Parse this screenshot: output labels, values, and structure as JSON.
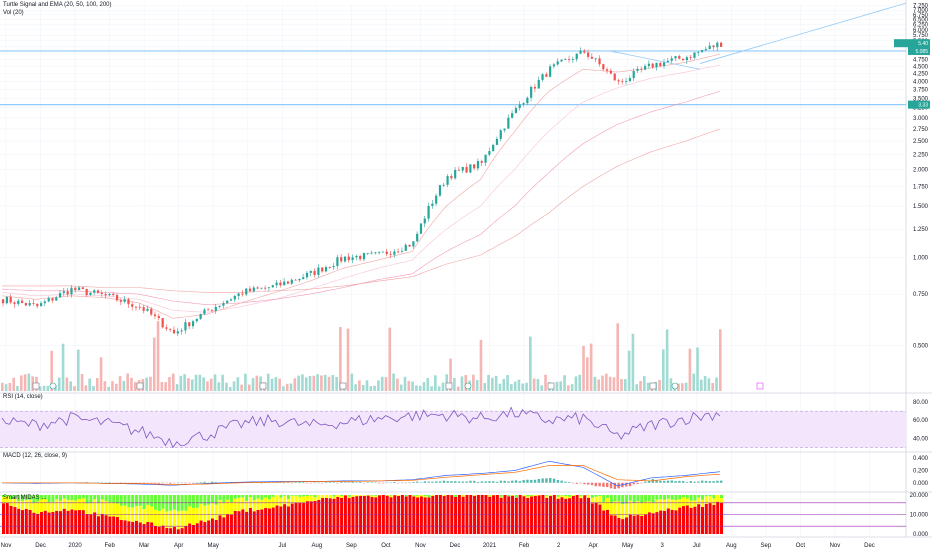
{
  "legends": {
    "main_title": "Turtle Signal and EMA (20, 50, 100, 200)",
    "vol": "Vol (20)",
    "rsi": "RSI (14, close)",
    "macd": "MACD (12, 26, close, 9)",
    "smart": "Smart MIDAS ..."
  },
  "colors": {
    "up": "#26a69a",
    "down": "#ef5350",
    "vol_up": "#8fd3ca",
    "vol_down": "#f2a8a6",
    "hline": "#90caf9",
    "rsi_line": "#7e57c2",
    "rsi_band": "#f3e5fb",
    "macd_line": "#2962ff",
    "signal_line": "#ff6d00",
    "smart_red": "#ff0000",
    "smart_yellow": "#ffff00",
    "smart_green": "#66ff33",
    "price_label": "#26a69a"
  },
  "chart_data": [
    {
      "type": "line",
      "title": "Turtle Signal and EMA (20, 50, 100, 200)",
      "x_axis": {
        "labels": [
          "Nov",
          "Dec",
          "2020",
          "Feb",
          "Mar",
          "Apr",
          "May",
          "Jun",
          "Jul",
          "Aug",
          "Sep",
          "Oct",
          "Nov",
          "Dec",
          "2021",
          "Feb",
          "Mar",
          "Apr",
          "May",
          "Jun",
          "Jul",
          "Aug",
          "Sep",
          "Oct",
          "Nov",
          "Dec"
        ],
        "display_labels": [
          "Nov",
          "Dec",
          "2020",
          "Feb",
          "Mar",
          "Apr",
          "May",
          "",
          "Jul",
          "Aug",
          "Sep",
          "Oct",
          "Nov",
          "Dec",
          "2021",
          "Feb",
          "2",
          "Apr",
          "May",
          "3",
          "Jul",
          "Aug",
          "Sep",
          "Oct",
          "Nov",
          "Dec"
        ]
      },
      "y_axis": {
        "ticks": [
          "7.250",
          "7.000",
          "6.750",
          "6.500",
          "6.250",
          "6.000",
          "5.750",
          "5.500",
          "5.250",
          "5.000",
          "4.750",
          "4.500",
          "4.250",
          "4.000",
          "3.750",
          "3.500",
          "3.250",
          "3.000",
          "2.750",
          "2.500",
          "2.250",
          "2.000",
          "1.750",
          "1.500",
          "1.250",
          "1.000",
          "0.750",
          "0.500"
        ],
        "range": [
          0.35,
          7.35
        ]
      },
      "price_series": {
        "name": "",
        "dates": [
          "Nov",
          "Dec",
          "2020",
          "Feb",
          "Mar",
          "Apr",
          "May",
          "Jun",
          "Jul",
          "Aug",
          "Sep",
          "Oct",
          "Nov",
          "Dec",
          "2021",
          "Feb",
          "Mar",
          "Apr",
          "May",
          "Jun",
          "Jul",
          "Jul-end"
        ],
        "values": [
          0.72,
          0.68,
          0.78,
          0.74,
          0.68,
          0.55,
          0.66,
          0.76,
          0.8,
          0.88,
          1.0,
          1.02,
          1.12,
          1.9,
          2.1,
          3.2,
          4.4,
          5.05,
          3.95,
          4.55,
          4.85,
          5.4
        ]
      },
      "ema_series": [
        {
          "name": "",
          "values": [
            0.74,
            0.72,
            0.74,
            0.73,
            0.7,
            0.62,
            0.64,
            0.7,
            0.76,
            0.83,
            0.92,
            0.98,
            1.05,
            1.5,
            1.85,
            2.7,
            3.7,
            4.4,
            4.3,
            4.45,
            4.65,
            4.95
          ]
        },
        {
          "name": "",
          "values": [
            0.76,
            0.74,
            0.75,
            0.74,
            0.72,
            0.66,
            0.65,
            0.68,
            0.72,
            0.78,
            0.85,
            0.92,
            0.98,
            1.25,
            1.5,
            2.0,
            2.7,
            3.4,
            3.8,
            4.1,
            4.3,
            4.55
          ]
        },
        {
          "name": "",
          "values": [
            0.78,
            0.77,
            0.77,
            0.76,
            0.75,
            0.71,
            0.69,
            0.7,
            0.72,
            0.75,
            0.79,
            0.84,
            0.88,
            1.05,
            1.2,
            1.5,
            1.95,
            2.45,
            2.85,
            3.15,
            3.4,
            3.7
          ]
        },
        {
          "name": "",
          "values": [
            0.8,
            0.8,
            0.8,
            0.79,
            0.79,
            0.77,
            0.76,
            0.76,
            0.77,
            0.78,
            0.8,
            0.83,
            0.86,
            0.95,
            1.02,
            1.18,
            1.42,
            1.75,
            2.05,
            2.3,
            2.5,
            2.75
          ]
        }
      ],
      "horizontal_levels": [
        5.08,
        3.33
      ],
      "trend_line": {
        "from": {
          "date": "Jun",
          "value": 4.2
        },
        "to": {
          "date": "beyond Aug",
          "value": 7.4
        }
      },
      "last_price": "5.40",
      "level_label": "5.085",
      "level_label_2": "3.33"
    },
    {
      "type": "bar",
      "title": "Vol (20)",
      "note": "volume bars, no scale printed"
    },
    {
      "type": "line",
      "title": "RSI (14, close)",
      "y_axis": {
        "ticks": [
          "80.00",
          "60.00",
          "40.00"
        ],
        "range": [
          25,
          90
        ]
      },
      "band": [
        30,
        70
      ],
      "values": [
        58,
        55,
        62,
        57,
        48,
        36,
        44,
        56,
        60,
        54,
        58,
        62,
        65,
        66,
        62,
        68,
        60,
        62,
        42,
        55,
        62,
        68
      ]
    },
    {
      "type": "line",
      "title": "MACD (12, 26, close, 9)",
      "y_axis": {
        "ticks": [
          "0.400",
          "0.200",
          "0.000"
        ],
        "range": [
          -0.15,
          0.5
        ]
      },
      "series": [
        {
          "name": "",
          "values": [
            0.0,
            -0.01,
            0.0,
            -0.01,
            -0.02,
            -0.04,
            -0.01,
            0.01,
            0.02,
            0.02,
            0.03,
            0.03,
            0.05,
            0.12,
            0.15,
            0.2,
            0.35,
            0.25,
            -0.05,
            0.08,
            0.12,
            0.18
          ]
        },
        {
          "name": "",
          "values": [
            0.0,
            0.0,
            0.0,
            -0.01,
            -0.01,
            -0.03,
            -0.02,
            0.0,
            0.01,
            0.02,
            0.02,
            0.03,
            0.04,
            0.09,
            0.13,
            0.17,
            0.28,
            0.28,
            0.05,
            0.03,
            0.1,
            0.14
          ]
        }
      ]
    },
    {
      "type": "area",
      "title": "Smart MIDAS ...",
      "y_axis": {
        "ticks": [
          "20.000",
          "10.000",
          "0.000"
        ],
        "range": [
          0,
          20
        ]
      },
      "red_share": [
        0.8,
        0.55,
        0.65,
        0.45,
        0.3,
        0.15,
        0.35,
        0.6,
        0.7,
        0.85,
        0.95,
        0.98,
        0.97,
        0.99,
        0.98,
        0.97,
        0.95,
        0.96,
        0.4,
        0.55,
        0.7,
        0.8
      ],
      "yellow_share": [
        0.15,
        0.3,
        0.25,
        0.35,
        0.4,
        0.45,
        0.4,
        0.3,
        0.25,
        0.12,
        0.05,
        0.02,
        0.03,
        0.01,
        0.02,
        0.03,
        0.05,
        0.04,
        0.4,
        0.3,
        0.2,
        0.15
      ]
    }
  ]
}
